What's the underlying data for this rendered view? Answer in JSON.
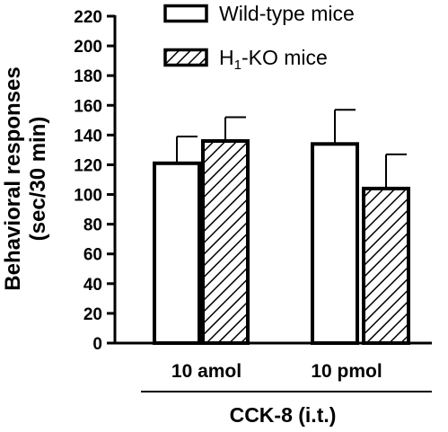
{
  "chart_data": {
    "type": "bar",
    "ylabel_line1": "Behavioral responses",
    "ylabel_line2": "(sec/30 min)",
    "ylim": [
      0,
      220
    ],
    "yticks": [
      0,
      20,
      40,
      60,
      80,
      100,
      120,
      140,
      160,
      180,
      200,
      220
    ],
    "categories": [
      "10 amol",
      "10 pmol"
    ],
    "group_label": "CCK-8 (i.t.)",
    "legend_position": "top-right",
    "series": [
      {
        "name": "Wild-type mice",
        "name_sub": "",
        "name_suffix": "",
        "fill": "open",
        "values": [
          121,
          134
        ],
        "errors": [
          18,
          23
        ]
      },
      {
        "name": "H",
        "name_sub": "1",
        "name_suffix": "-KO mice",
        "fill": "hatched",
        "values": [
          136,
          104
        ],
        "errors": [
          16,
          23
        ]
      }
    ],
    "colors": {
      "stroke": "#000000",
      "fill": "#ffffff"
    }
  }
}
